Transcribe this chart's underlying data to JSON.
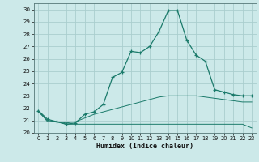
{
  "title": "",
  "xlabel": "Humidex (Indice chaleur)",
  "xlim": [
    -0.5,
    23.5
  ],
  "ylim": [
    20,
    30.5
  ],
  "yticks": [
    20,
    21,
    22,
    23,
    24,
    25,
    26,
    27,
    28,
    29,
    30
  ],
  "xticks": [
    0,
    1,
    2,
    3,
    4,
    5,
    6,
    7,
    8,
    9,
    10,
    11,
    12,
    13,
    14,
    15,
    16,
    17,
    18,
    19,
    20,
    21,
    22,
    23
  ],
  "bg_color": "#cce9e9",
  "grid_color": "#aacece",
  "line_color": "#1a7a6a",
  "line1": [
    21.8,
    21.1,
    20.9,
    20.7,
    20.8,
    21.5,
    21.7,
    22.3,
    24.5,
    24.9,
    26.6,
    26.5,
    27.0,
    28.2,
    29.9,
    29.9,
    27.5,
    26.3,
    25.8,
    23.5,
    23.3,
    23.1,
    23.0,
    23.0
  ],
  "line2": [
    21.7,
    21.0,
    20.9,
    20.8,
    20.9,
    21.2,
    21.5,
    21.7,
    21.9,
    22.1,
    22.3,
    22.5,
    22.7,
    22.9,
    23.0,
    23.0,
    23.0,
    23.0,
    22.9,
    22.8,
    22.7,
    22.6,
    22.5,
    22.5
  ],
  "line3": [
    21.8,
    20.9,
    20.9,
    20.7,
    20.7,
    20.7,
    20.7,
    20.7,
    20.7,
    20.7,
    20.7,
    20.7,
    20.7,
    20.7,
    20.7,
    20.7,
    20.7,
    20.7,
    20.7,
    20.7,
    20.7,
    20.7,
    20.7,
    20.4
  ]
}
